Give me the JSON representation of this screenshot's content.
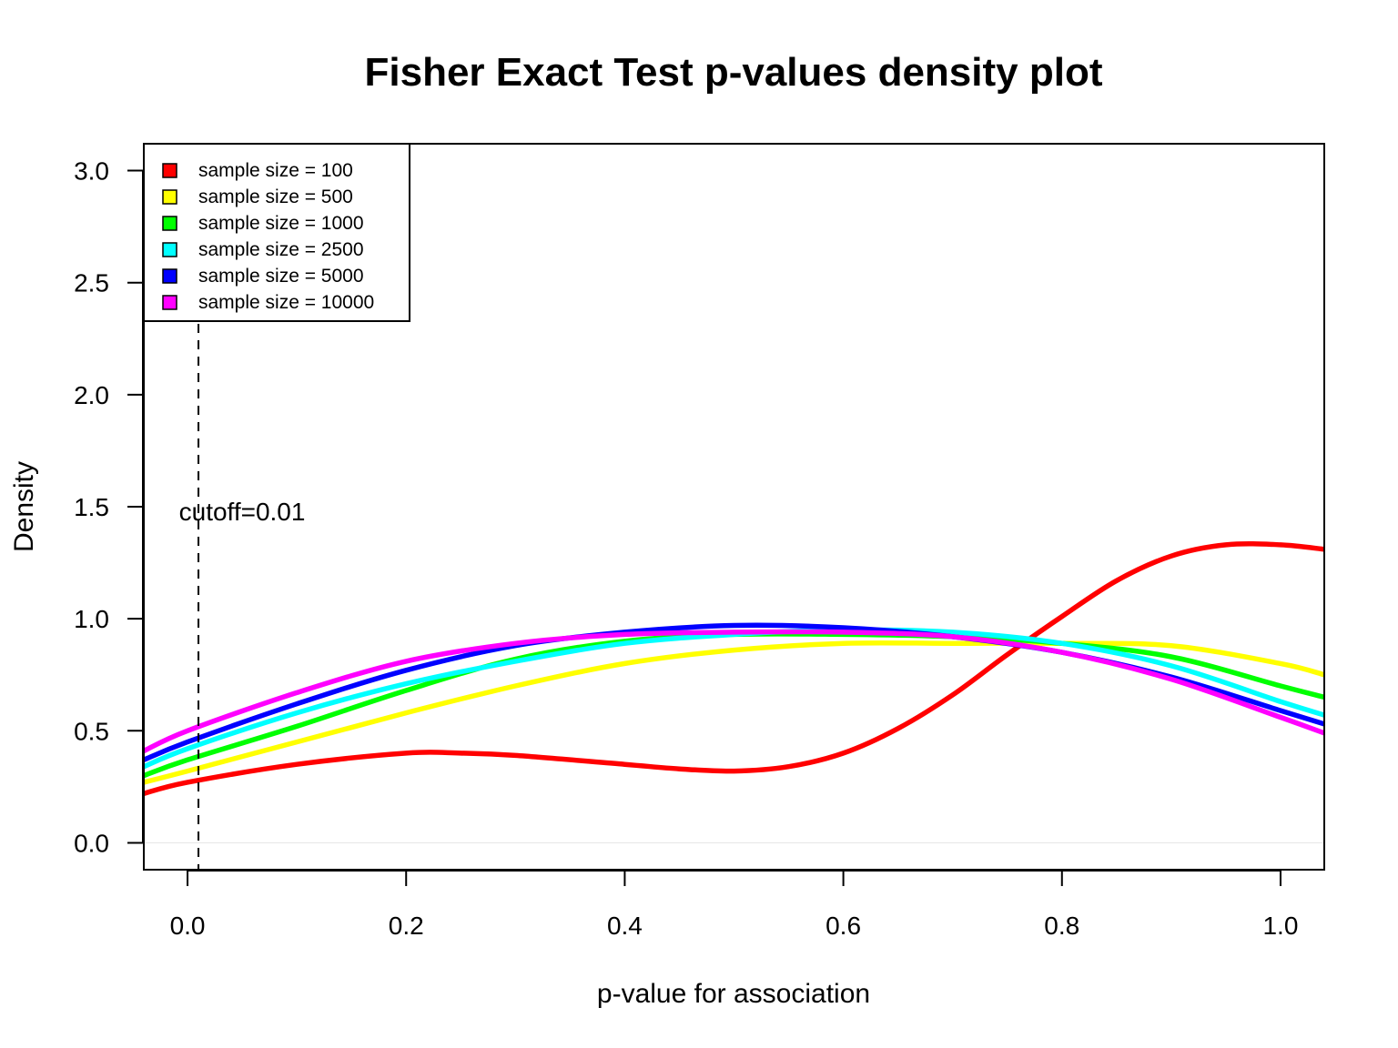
{
  "chart_data": {
    "type": "line",
    "title": "Fisher Exact Test p-values density plot",
    "xlabel": "p-value for association",
    "ylabel": "Density",
    "xlim": [
      -0.04,
      1.04
    ],
    "ylim": [
      -0.12,
      3.12
    ],
    "x_ticks": [
      0.0,
      0.2,
      0.4,
      0.6,
      0.8,
      1.0
    ],
    "x_tick_labels": [
      "0.0",
      "0.2",
      "0.4",
      "0.6",
      "0.8",
      "1.0"
    ],
    "y_ticks": [
      0.0,
      0.5,
      1.0,
      1.5,
      2.0,
      2.5,
      3.0
    ],
    "y_tick_labels": [
      "0.0",
      "0.5",
      "1.0",
      "1.5",
      "2.0",
      "2.5",
      "3.0"
    ],
    "grid": false,
    "zero_line": true,
    "legend_position": "top-left",
    "cutoff": {
      "x": 0.01,
      "label": "cutoff=0.01",
      "label_y": 1.48
    },
    "series": [
      {
        "name": "sample size = 100",
        "color": "#FF0000",
        "x": [
          -0.04,
          0.0,
          0.1,
          0.2,
          0.25,
          0.3,
          0.4,
          0.45,
          0.5,
          0.55,
          0.6,
          0.65,
          0.7,
          0.75,
          0.8,
          0.85,
          0.9,
          0.95,
          1.0,
          1.04
        ],
        "y": [
          0.22,
          0.27,
          0.35,
          0.4,
          0.4,
          0.39,
          0.35,
          0.33,
          0.32,
          0.34,
          0.4,
          0.51,
          0.66,
          0.84,
          1.01,
          1.17,
          1.28,
          1.33,
          1.33,
          1.31
        ]
      },
      {
        "name": "sample size = 500",
        "color": "#FFFF00",
        "x": [
          -0.04,
          0.0,
          0.1,
          0.2,
          0.3,
          0.4,
          0.5,
          0.6,
          0.7,
          0.8,
          0.9,
          1.0,
          1.04
        ],
        "y": [
          0.27,
          0.32,
          0.45,
          0.58,
          0.7,
          0.8,
          0.86,
          0.89,
          0.89,
          0.89,
          0.88,
          0.8,
          0.75
        ]
      },
      {
        "name": "sample size = 1000",
        "color": "#00FF00",
        "x": [
          -0.04,
          0.0,
          0.1,
          0.2,
          0.3,
          0.4,
          0.5,
          0.6,
          0.7,
          0.8,
          0.9,
          1.0,
          1.04
        ],
        "y": [
          0.3,
          0.37,
          0.52,
          0.68,
          0.82,
          0.9,
          0.93,
          0.93,
          0.92,
          0.89,
          0.83,
          0.7,
          0.65
        ]
      },
      {
        "name": "sample size = 2500",
        "color": "#00FFFF",
        "x": [
          -0.04,
          0.0,
          0.1,
          0.2,
          0.3,
          0.4,
          0.5,
          0.6,
          0.7,
          0.8,
          0.9,
          1.0,
          1.04
        ],
        "y": [
          0.34,
          0.42,
          0.58,
          0.71,
          0.81,
          0.89,
          0.93,
          0.95,
          0.94,
          0.89,
          0.79,
          0.63,
          0.57
        ]
      },
      {
        "name": "sample size = 5000",
        "color": "#0000FF",
        "x": [
          -0.04,
          0.0,
          0.1,
          0.2,
          0.3,
          0.4,
          0.5,
          0.6,
          0.7,
          0.8,
          0.9,
          1.0,
          1.04
        ],
        "y": [
          0.37,
          0.45,
          0.62,
          0.77,
          0.88,
          0.94,
          0.97,
          0.96,
          0.92,
          0.85,
          0.74,
          0.59,
          0.53
        ]
      },
      {
        "name": "sample size = 10000",
        "color": "#FF00FF",
        "x": [
          -0.04,
          0.0,
          0.1,
          0.2,
          0.3,
          0.4,
          0.5,
          0.6,
          0.7,
          0.8,
          0.9,
          1.0,
          1.04
        ],
        "y": [
          0.41,
          0.5,
          0.67,
          0.81,
          0.89,
          0.93,
          0.94,
          0.94,
          0.92,
          0.85,
          0.73,
          0.56,
          0.49
        ]
      }
    ]
  }
}
